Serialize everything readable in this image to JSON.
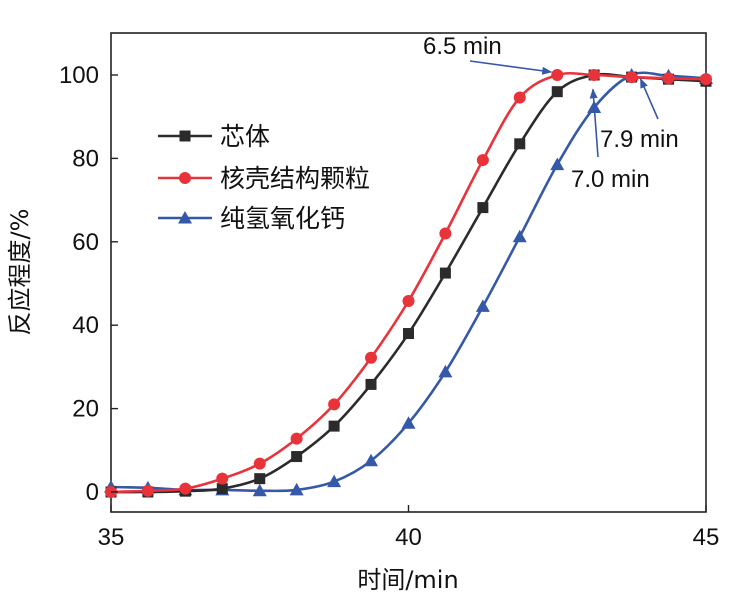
{
  "chart_data": {
    "type": "line",
    "xlabel": "时间/min",
    "ylabel": "反应程度/%",
    "xlim": [
      35,
      45
    ],
    "ylim": [
      -5,
      110
    ],
    "xticks": [
      35,
      40,
      45
    ],
    "yticks": [
      0,
      20,
      40,
      60,
      80,
      100
    ],
    "legend_position": "upper-left",
    "series": [
      {
        "name": "芯体",
        "color": "#2b2b2b",
        "marker": "square",
        "x": [
          35.0,
          35.62,
          36.25,
          36.87,
          37.5,
          38.12,
          38.75,
          39.37,
          40.0,
          40.62,
          41.25,
          41.87,
          42.5,
          43.12,
          43.75,
          44.37,
          45.0
        ],
        "y": [
          0,
          0,
          0.2,
          0.8,
          3.2,
          8.5,
          15.8,
          25.8,
          38,
          52.5,
          68.2,
          83.5,
          96,
          100,
          99.5,
          99,
          98.5
        ]
      },
      {
        "name": "核壳结构颗粒",
        "color": "#e8333a",
        "marker": "circle",
        "x": [
          35.0,
          35.62,
          36.25,
          36.87,
          37.5,
          38.12,
          38.75,
          39.37,
          40.0,
          40.62,
          41.25,
          41.87,
          42.5,
          43.12,
          43.75,
          44.37,
          45.0
        ],
        "y": [
          0,
          0.3,
          0.8,
          3.2,
          6.8,
          12.8,
          21,
          32.2,
          45.8,
          62,
          79.6,
          94.6,
          100,
          100,
          99.5,
          99.2,
          99
        ]
      },
      {
        "name": "纯氢氧化钙",
        "color": "#3558a8",
        "marker": "triangle",
        "x": [
          35.0,
          35.62,
          36.25,
          36.87,
          37.5,
          38.12,
          38.75,
          39.37,
          40.0,
          40.62,
          41.25,
          41.87,
          42.5,
          43.12,
          43.75,
          44.37,
          45.0
        ],
        "y": [
          1.2,
          1.0,
          0.5,
          0.5,
          0.3,
          0.5,
          2.5,
          7.5,
          16.5,
          28.8,
          44.5,
          61.2,
          78.5,
          92.2,
          100,
          99.8,
          99.2
        ]
      }
    ],
    "annotations": [
      {
        "text": "6.5 min",
        "point": [
          42.5,
          100
        ]
      },
      {
        "text": "7.9 min",
        "point": [
          43.9,
          100.5
        ]
      },
      {
        "text": "7.0 min",
        "point": [
          43.1,
          98
        ]
      }
    ]
  }
}
